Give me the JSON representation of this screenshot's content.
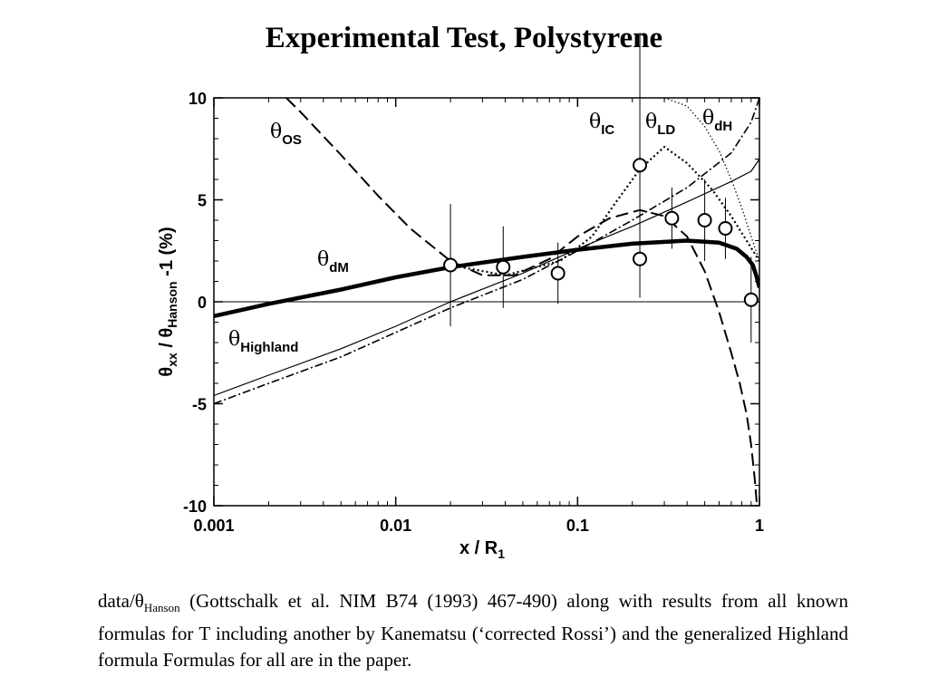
{
  "title": "Experimental Test, Polystyrene",
  "caption": {
    "part1": "data/θ",
    "sub": "Hanson",
    "part2": "  (Gottschalk et al. NIM B74 (1993) 467-490) along with results from all known formulas for T  including another by Kanematsu (‘corrected Rossi’) and the generalized Highland formula  Formulas for all are in the paper."
  },
  "chart_data": {
    "type": "line",
    "xlabel": "x / R",
    "xlabel_sub": "1",
    "ylabel_theta": "θ",
    "ylabel_sub1": "xx",
    "ylabel_mid": " / θ",
    "ylabel_sub2": "Hanson",
    "ylabel_tail": "  -1   (%)",
    "xscale": "log",
    "xlim": [
      0.001,
      1
    ],
    "ylim": [
      -10,
      10
    ],
    "x_ticks": [
      {
        "value": 0.001,
        "label": "0.001"
      },
      {
        "value": 0.01,
        "label": "0.01"
      },
      {
        "value": 0.1,
        "label": "0.1"
      },
      {
        "value": 1,
        "label": "1"
      }
    ],
    "y_ticks": [
      {
        "value": 10,
        "label": "10"
      },
      {
        "value": 5,
        "label": "5"
      },
      {
        "value": 0,
        "label": "0"
      },
      {
        "value": -5,
        "label": "-5"
      },
      {
        "value": -10,
        "label": "-10"
      }
    ],
    "zero_line": true,
    "grid": false,
    "data_points": [
      {
        "x": 0.02,
        "y": 1.8,
        "err": 3.0
      },
      {
        "x": 0.039,
        "y": 1.7,
        "err": 2.0
      },
      {
        "x": 0.078,
        "y": 1.4,
        "err": 1.5
      },
      {
        "x": 0.22,
        "y": 6.7,
        "err": 6.5
      },
      {
        "x": 0.22,
        "y": 2.1,
        "err": 0
      },
      {
        "x": 0.33,
        "y": 4.1,
        "err": 1.5
      },
      {
        "x": 0.5,
        "y": 4.0,
        "err": 2.0
      },
      {
        "x": 0.65,
        "y": 3.6,
        "err": 1.5
      },
      {
        "x": 0.9,
        "y": 0.1,
        "err": 2.1
      }
    ],
    "series": [
      {
        "name": "dM",
        "label_theta": "θ",
        "label_sub": "dM",
        "style": "thick-solid",
        "x": [
          0.001,
          0.002,
          0.005,
          0.01,
          0.02,
          0.05,
          0.1,
          0.2,
          0.4,
          0.6,
          0.75,
          0.85,
          0.92,
          0.96,
          1.0
        ],
        "y": [
          -0.7,
          -0.1,
          0.6,
          1.2,
          1.7,
          2.2,
          2.55,
          2.85,
          3.0,
          2.9,
          2.6,
          2.2,
          1.8,
          1.3,
          0.7
        ]
      },
      {
        "name": "Highland",
        "label_theta": "θ",
        "label_sub": "Highland",
        "style": "thin-solid",
        "x": [
          0.001,
          0.002,
          0.005,
          0.01,
          0.02,
          0.05,
          0.1,
          0.2,
          0.4,
          0.7,
          0.9,
          1.0
        ],
        "y": [
          -4.6,
          -3.6,
          -2.3,
          -1.2,
          0.0,
          1.4,
          2.6,
          3.7,
          4.9,
          5.9,
          6.4,
          7.0
        ]
      },
      {
        "name": "dH",
        "label_theta": "θ",
        "label_sub": "dH",
        "style": "dash-dot",
        "x": [
          0.001,
          0.002,
          0.005,
          0.01,
          0.02,
          0.05,
          0.1,
          0.2,
          0.4,
          0.7,
          0.9,
          1.0
        ],
        "y": [
          -5.0,
          -4.0,
          -2.7,
          -1.5,
          -0.3,
          1.1,
          2.5,
          4.0,
          5.6,
          7.3,
          8.8,
          10.0
        ]
      },
      {
        "name": "OS",
        "label_theta": "θ",
        "label_sub": "OS",
        "style": "long-dash",
        "x": [
          0.0025,
          0.003,
          0.005,
          0.008,
          0.012,
          0.02,
          0.03,
          0.045,
          0.07,
          0.1,
          0.15,
          0.22,
          0.3,
          0.4,
          0.5,
          0.6,
          0.7,
          0.78,
          0.85,
          0.9,
          0.94,
          0.97
        ],
        "y": [
          10.0,
          9.3,
          7.2,
          5.2,
          3.6,
          2.0,
          1.3,
          1.3,
          2.1,
          3.2,
          4.1,
          4.5,
          4.2,
          3.2,
          1.5,
          -0.5,
          -2.5,
          -4.0,
          -5.5,
          -7.0,
          -8.6,
          -10.0
        ]
      },
      {
        "name": "IC",
        "label_theta": "θ",
        "label_sub": "IC",
        "style": "dotted",
        "x": [
          0.02,
          0.04,
          0.08,
          0.12,
          0.16,
          0.22,
          0.3,
          0.4,
          0.55,
          0.7,
          0.85,
          1.0
        ],
        "y": [
          1.8,
          1.3,
          2.0,
          3.2,
          4.8,
          6.5,
          7.6,
          6.8,
          5.5,
          4.2,
          3.0,
          2.0
        ]
      },
      {
        "name": "LD",
        "label_theta": "θ",
        "label_sub": "LD",
        "style": "fine-dotted",
        "x": [
          0.3,
          0.4,
          0.5,
          0.6,
          0.7,
          0.8,
          0.9,
          1.0
        ],
        "y": [
          10.0,
          9.6,
          8.6,
          7.4,
          6.0,
          4.6,
          3.2,
          2.0
        ]
      }
    ]
  }
}
